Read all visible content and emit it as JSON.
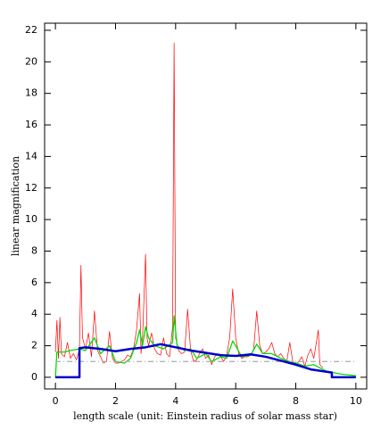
{
  "chart_data": {
    "type": "line",
    "x_label": "length scale (unit: Einstein radius of solar mass star)",
    "y_label": "linear magnification",
    "xlim": [
      -0.36,
      10.36
    ],
    "ylim": [
      -0.74,
      22.45
    ],
    "xticks": [
      0,
      2,
      4,
      6,
      8,
      10
    ],
    "yticks": [
      0,
      2,
      4,
      6,
      8,
      10,
      12,
      14,
      16,
      18,
      20,
      22
    ],
    "series": [
      {
        "color": "#ff0000",
        "width": 0.7,
        "x": [
          0.0,
          0.05,
          0.1,
          0.15,
          0.2,
          0.3,
          0.4,
          0.5,
          0.6,
          0.7,
          0.8,
          0.85,
          0.9,
          1.0,
          1.1,
          1.2,
          1.3,
          1.4,
          1.5,
          1.6,
          1.7,
          1.8,
          1.9,
          2.0,
          2.1,
          2.2,
          2.3,
          2.4,
          2.5,
          2.6,
          2.7,
          2.8,
          2.85,
          2.9,
          3.0,
          3.05,
          3.1,
          3.2,
          3.3,
          3.4,
          3.5,
          3.6,
          3.7,
          3.8,
          3.9,
          3.95,
          4.0,
          4.1,
          4.2,
          4.3,
          4.4,
          4.5,
          4.6,
          4.7,
          4.8,
          4.9,
          5.0,
          5.1,
          5.2,
          5.3,
          5.4,
          5.5,
          5.6,
          5.7,
          5.8,
          5.9,
          6.0,
          6.1,
          6.2,
          6.3,
          6.4,
          6.5,
          6.6,
          6.7,
          6.8,
          6.9,
          7.0,
          7.1,
          7.2,
          7.3,
          7.4,
          7.5,
          7.6,
          7.7,
          7.8,
          7.9,
          8.0,
          8.1,
          8.2,
          8.3,
          8.4,
          8.5,
          8.6,
          8.7,
          8.75,
          8.8,
          8.9
        ],
        "values": [
          1.6,
          3.6,
          1.2,
          3.8,
          1.5,
          1.3,
          2.2,
          1.2,
          1.5,
          1.1,
          1.8,
          7.1,
          2.5,
          1.8,
          2.8,
          1.3,
          4.2,
          1.7,
          1.3,
          0.9,
          1.0,
          2.9,
          1.2,
          0.9,
          0.9,
          1.0,
          1.1,
          1.4,
          1.3,
          1.8,
          3.0,
          5.3,
          1.5,
          2.5,
          7.8,
          2.5,
          2.0,
          2.8,
          1.8,
          1.5,
          1.4,
          2.5,
          1.5,
          1.3,
          3.2,
          21.2,
          2.5,
          1.7,
          1.5,
          1.6,
          4.3,
          1.7,
          1.0,
          1.1,
          1.5,
          1.8,
          1.2,
          1.4,
          0.8,
          1.3,
          1.5,
          1.3,
          1.0,
          1.4,
          2.5,
          5.6,
          2.5,
          1.5,
          1.2,
          1.3,
          1.3,
          1.4,
          1.8,
          4.2,
          2.0,
          1.5,
          1.6,
          1.8,
          2.2,
          1.5,
          1.3,
          1.5,
          1.2,
          1.0,
          2.2,
          1.0,
          0.8,
          1.0,
          1.3,
          0.7,
          1.4,
          1.8,
          1.2,
          2.4,
          3.0,
          0.8,
          0.6
        ]
      },
      {
        "color": "#00dd00",
        "width": 1.3,
        "x": [
          0.0,
          0.05,
          0.3,
          0.5,
          0.8,
          1.0,
          1.3,
          1.5,
          1.8,
          2.0,
          2.3,
          2.5,
          2.7,
          2.8,
          2.9,
          3.0,
          3.1,
          3.3,
          3.6,
          3.9,
          3.95,
          4.05,
          4.3,
          4.5,
          4.7,
          5.0,
          5.2,
          5.5,
          5.7,
          5.9,
          6.0,
          6.2,
          6.5,
          6.7,
          6.9,
          7.2,
          7.5,
          7.8,
          8.0,
          8.3,
          8.6,
          8.8,
          9.0,
          9.5,
          10.0
        ],
        "values": [
          0.0,
          1.6,
          1.6,
          1.7,
          1.8,
          1.7,
          2.5,
          1.5,
          2.0,
          1.0,
          0.9,
          1.2,
          2.2,
          3.0,
          2.0,
          3.2,
          2.5,
          2.0,
          1.8,
          2.2,
          3.9,
          2.0,
          1.7,
          1.8,
          1.2,
          1.5,
          1.0,
          1.3,
          1.2,
          2.3,
          2.0,
          1.3,
          1.4,
          2.1,
          1.5,
          1.5,
          1.2,
          1.0,
          0.9,
          0.7,
          0.8,
          0.6,
          0.4,
          0.2,
          0.1
        ]
      },
      {
        "color": "#0000cc",
        "width": 2.5,
        "x": [
          0.0,
          0.8,
          0.8,
          1.0,
          1.5,
          2.0,
          2.5,
          3.0,
          3.5,
          4.0,
          4.5,
          5.0,
          5.5,
          6.0,
          6.5,
          7.0,
          7.5,
          8.0,
          8.5,
          9.2,
          9.2,
          10.0
        ],
        "values": [
          0.0,
          0.0,
          1.85,
          1.9,
          1.8,
          1.65,
          1.8,
          1.9,
          2.1,
          1.9,
          1.7,
          1.55,
          1.4,
          1.35,
          1.45,
          1.3,
          1.05,
          0.8,
          0.5,
          0.3,
          0.0,
          0.0
        ]
      },
      {
        "color": "#aaaaaa",
        "width": 1.2,
        "dash": "6 3 1 3",
        "x": [
          0,
          10
        ],
        "values": [
          1,
          1
        ]
      }
    ]
  }
}
